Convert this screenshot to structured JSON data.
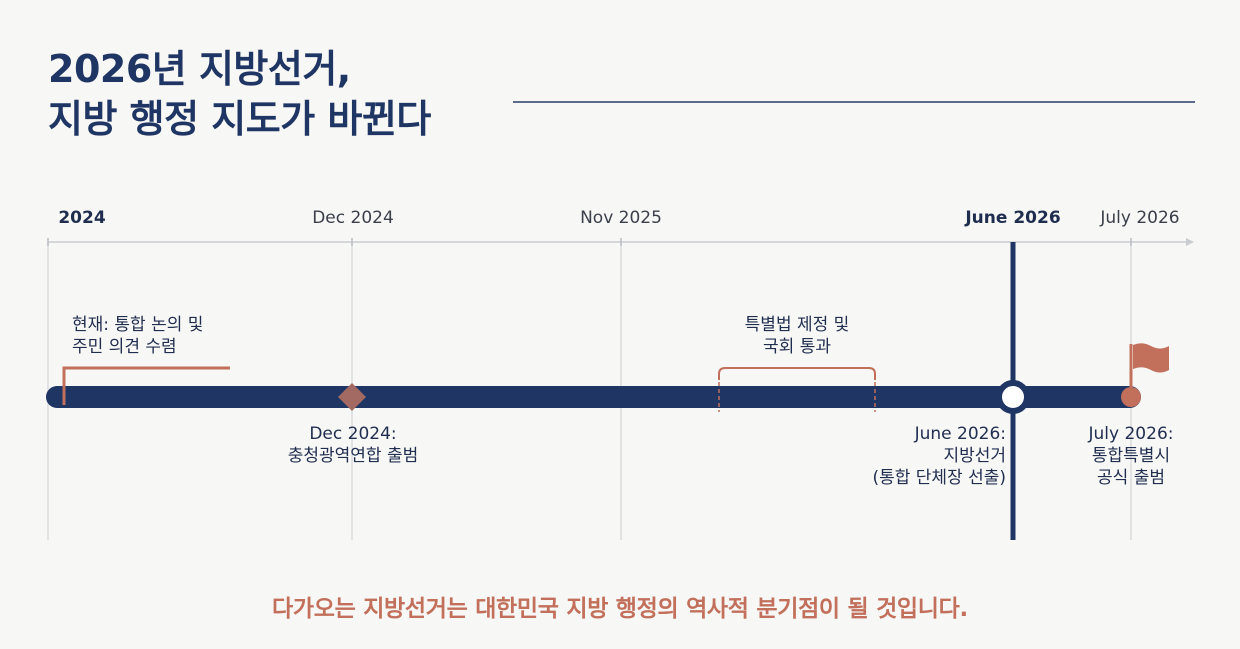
{
  "title": {
    "line1": "2026년 지방선거,",
    "line2": "지방 행정 지도가 바뀐다"
  },
  "axis_ticks": [
    {
      "label": "2024",
      "bold": true
    },
    {
      "label": "Dec 2024",
      "bold": false
    },
    {
      "label": "Nov 2025",
      "bold": false
    },
    {
      "label": "June 2026",
      "bold": true
    },
    {
      "label": "July 2026",
      "bold": false
    }
  ],
  "events": {
    "now": {
      "lines": [
        "현재: 통합 논의 및",
        "주민 의견 수렴"
      ]
    },
    "dec2024": {
      "lines": [
        "Dec 2024:",
        "충청광역연합 출범"
      ]
    },
    "special_law": {
      "lines": [
        "특별법 제정 및",
        "국회 통과"
      ]
    },
    "june2026": {
      "lines": [
        "June 2026:",
        "지방선거",
        "(통합 단체장 선출)"
      ]
    },
    "july2026": {
      "lines": [
        "July 2026:",
        "통합특별시",
        "공식 출범"
      ]
    }
  },
  "footer": "다가오는 지방선거는 대한민국 지방 행정의 역사적 분기점이 될 것입니다.",
  "colors": {
    "navy": "#1f3564",
    "accent": "#c2705b",
    "grid": "#d2d4d8",
    "background": "#f7f7f5"
  }
}
